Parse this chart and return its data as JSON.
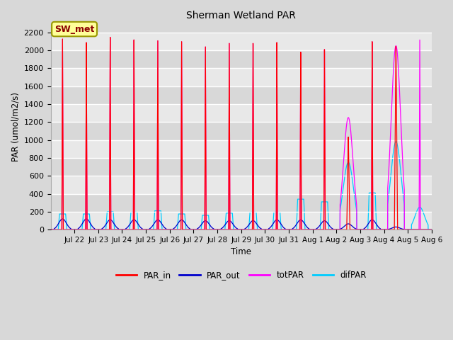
{
  "title": "Sherman Wetland PAR",
  "ylabel": "PAR (umol/m2/s)",
  "xlabel": "Time",
  "annotation": "SW_met",
  "ylim": [
    0,
    2300
  ],
  "yticks": [
    0,
    200,
    400,
    600,
    800,
    1000,
    1200,
    1400,
    1600,
    1800,
    2000,
    2200
  ],
  "colors": {
    "PAR_in": "#ff0000",
    "PAR_out": "#0000cc",
    "totPAR": "#ff00ff",
    "difPAR": "#00ccff"
  },
  "background_color": "#d8d8d8",
  "plot_bg_colors": [
    "#e8e8e8",
    "#d8d8d8"
  ],
  "grid_color": "#ffffff",
  "annotation_bbox": {
    "facecolor": "#ffff99",
    "edgecolor": "#999900",
    "linewidth": 1.5
  },
  "tick_labels": [
    "Jul 22",
    "Jul 23",
    "Jul 24",
    "Jul 25",
    "Jul 26",
    "Jul 27",
    "Jul 28",
    "Jul 29",
    "Jul 30",
    "Jul 31",
    "Aug 1",
    "Aug 2",
    "Aug 3",
    "Aug 4",
    "Aug 5",
    "Aug 6"
  ]
}
